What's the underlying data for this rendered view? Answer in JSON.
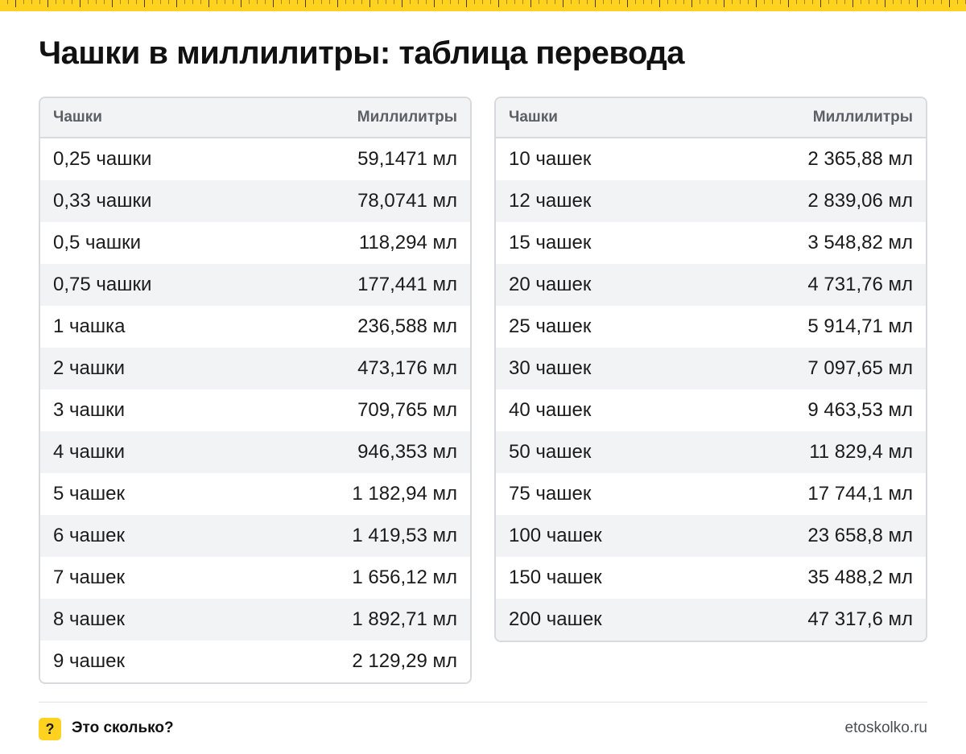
{
  "page": {
    "title": "Чашки в миллилитры: таблица перевода"
  },
  "table_left": {
    "headers": {
      "unit": "Чашки",
      "value": "Миллилитры"
    },
    "rows": [
      {
        "unit": "0,25 чашки",
        "value": "59,1471 мл"
      },
      {
        "unit": "0,33 чашки",
        "value": "78,0741 мл"
      },
      {
        "unit": "0,5 чашки",
        "value": "118,294 мл"
      },
      {
        "unit": "0,75 чашки",
        "value": "177,441 мл"
      },
      {
        "unit": "1 чашка",
        "value": "236,588 мл"
      },
      {
        "unit": "2 чашки",
        "value": "473,176 мл"
      },
      {
        "unit": "3 чашки",
        "value": "709,765 мл"
      },
      {
        "unit": "4 чашки",
        "value": "946,353 мл"
      },
      {
        "unit": "5 чашек",
        "value": "1 182,94 мл"
      },
      {
        "unit": "6 чашек",
        "value": "1 419,53 мл"
      },
      {
        "unit": "7 чашек",
        "value": "1 656,12 мл"
      },
      {
        "unit": "8 чашек",
        "value": "1 892,71 мл"
      },
      {
        "unit": "9 чашек",
        "value": "2 129,29 мл"
      }
    ]
  },
  "table_right": {
    "headers": {
      "unit": "Чашки",
      "value": "Миллилитры"
    },
    "rows": [
      {
        "unit": "10 чашек",
        "value": "2 365,88 мл"
      },
      {
        "unit": "12 чашек",
        "value": "2 839,06 мл"
      },
      {
        "unit": "15 чашек",
        "value": "3 548,82 мл"
      },
      {
        "unit": "20 чашек",
        "value": "4 731,76 мл"
      },
      {
        "unit": "25 чашек",
        "value": "5 914,71 мл"
      },
      {
        "unit": "30 чашек",
        "value": "7 097,65 мл"
      },
      {
        "unit": "40 чашек",
        "value": "9 463,53 мл"
      },
      {
        "unit": "50 чашек",
        "value": "11 829,4 мл"
      },
      {
        "unit": "75 чашек",
        "value": "17 744,1 мл"
      },
      {
        "unit": "100 чашек",
        "value": "23 658,8 мл"
      },
      {
        "unit": "150 чашек",
        "value": "35 488,2 мл"
      },
      {
        "unit": "200 чашек",
        "value": "47 317,6 мл"
      }
    ]
  },
  "footer": {
    "icon_symbol": "?",
    "icon_name": "question-mark-icon",
    "brand_name": "Это сколько?",
    "site": "etoskolko.ru"
  },
  "colors": {
    "accent": "#ffd21f",
    "header_bg": "#f2f3f5",
    "border": "#d9dadd",
    "header_text": "#5b5f66"
  }
}
